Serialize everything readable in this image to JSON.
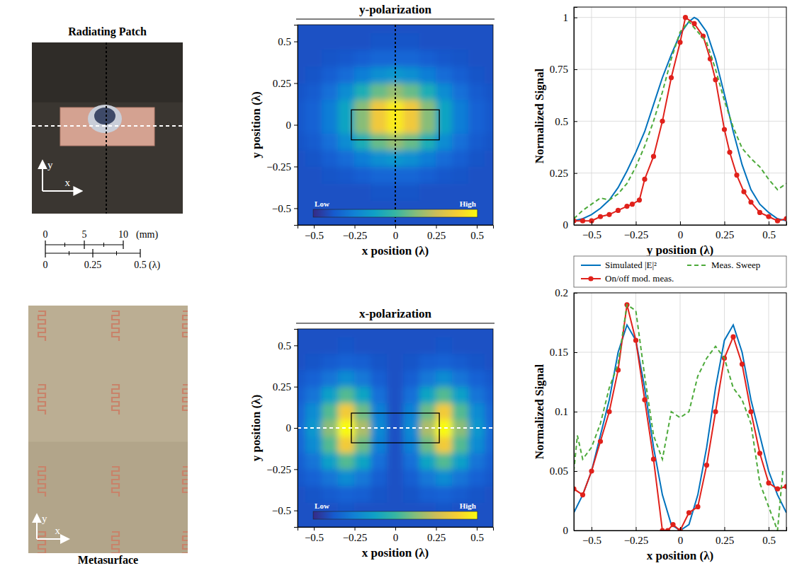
{
  "figure": {
    "patch_photo": {
      "title": "Radiating Patch",
      "axis_labels": {
        "x": "x",
        "y": "y"
      }
    },
    "scale_bar": {
      "mm_ticks": [
        0,
        5,
        10
      ],
      "mm_unit": "(mm)",
      "wavelength_ticks": [
        0,
        0.25,
        0.5
      ],
      "wavelength_unit": "(λ)"
    },
    "metasurface_photo": {
      "title": "Metasurface",
      "axis_labels": {
        "x": "x",
        "y": "y"
      }
    }
  },
  "chart_data": [
    {
      "type": "heatmap",
      "title": "y-polarization",
      "x_label": "x position (λ)",
      "y_label": "y position (λ)",
      "xlim": [
        -0.6,
        0.6
      ],
      "ylim": [
        -0.6,
        0.6
      ],
      "xticks": [
        {
          "value": -0.5,
          "label": "−0.5"
        },
        {
          "value": -0.25,
          "label": "−0.25"
        },
        0,
        0.25,
        0.5
      ],
      "yticks": [
        {
          "value": -0.5,
          "label": "−0.5"
        },
        {
          "value": -0.25,
          "label": "−0.25"
        },
        0,
        0.25,
        0.5
      ],
      "x": [
        -0.6,
        -0.5,
        -0.4,
        -0.3,
        -0.2,
        -0.1,
        0,
        0.1,
        0.2,
        0.3,
        0.4,
        0.5,
        0.6
      ],
      "y": [
        -0.6,
        -0.5,
        -0.4,
        -0.3,
        -0.2,
        -0.1,
        0,
        0.1,
        0.2,
        0.3,
        0.4,
        0.5,
        0.6
      ],
      "cells": [
        [
          0.1,
          0.1,
          0.1,
          0.1,
          0.1,
          0.1,
          0.1,
          0.1,
          0.1,
          0.1,
          0.1,
          0.1,
          0.1
        ],
        [
          0.1,
          0.1,
          0.1,
          0.1,
          0.1,
          0.1,
          0.1,
          0.1,
          0.1,
          0.1,
          0.1,
          0.1,
          0.1
        ],
        [
          0.1,
          0.1,
          0.1,
          0.1,
          0.1,
          0.11,
          0.11,
          0.11,
          0.1,
          0.1,
          0.1,
          0.1,
          0.1
        ],
        [
          0.1,
          0.1,
          0.11,
          0.12,
          0.14,
          0.16,
          0.16,
          0.16,
          0.14,
          0.12,
          0.11,
          0.1,
          0.1
        ],
        [
          0.1,
          0.11,
          0.14,
          0.18,
          0.24,
          0.3,
          0.33,
          0.3,
          0.24,
          0.18,
          0.14,
          0.11,
          0.1
        ],
        [
          0.11,
          0.13,
          0.19,
          0.29,
          0.44,
          0.58,
          0.65,
          0.58,
          0.44,
          0.29,
          0.19,
          0.13,
          0.11
        ],
        [
          0.12,
          0.15,
          0.24,
          0.39,
          0.63,
          0.85,
          0.96,
          0.85,
          0.63,
          0.39,
          0.24,
          0.15,
          0.12
        ],
        [
          0.12,
          0.15,
          0.24,
          0.39,
          0.63,
          0.85,
          0.96,
          0.85,
          0.63,
          0.39,
          0.24,
          0.15,
          0.12
        ],
        [
          0.11,
          0.13,
          0.19,
          0.29,
          0.44,
          0.58,
          0.65,
          0.58,
          0.44,
          0.29,
          0.19,
          0.13,
          0.11
        ],
        [
          0.1,
          0.11,
          0.14,
          0.18,
          0.24,
          0.3,
          0.33,
          0.3,
          0.24,
          0.18,
          0.14,
          0.11,
          0.1
        ],
        [
          0.1,
          0.1,
          0.11,
          0.12,
          0.14,
          0.16,
          0.16,
          0.16,
          0.14,
          0.12,
          0.11,
          0.1,
          0.1
        ],
        [
          0.1,
          0.1,
          0.1,
          0.1,
          0.1,
          0.11,
          0.11,
          0.11,
          0.1,
          0.1,
          0.1,
          0.1,
          0.1
        ],
        [
          0.1,
          0.1,
          0.1,
          0.1,
          0.1,
          0.1,
          0.1,
          0.1,
          0.1,
          0.1,
          0.1,
          0.1,
          0.1
        ]
      ],
      "colorbar_range": [
        0,
        1
      ],
      "colorbar_labels": [
        "Low",
        "High"
      ],
      "patch_outline": {
        "x": [
          -0.27,
          0.27
        ],
        "y": [
          -0.09,
          0.09
        ]
      },
      "cut": {
        "x": 0
      }
    },
    {
      "type": "heatmap",
      "title": "x-polarization",
      "x_label": "x position (λ)",
      "y_label": "y position (λ)",
      "xlim": [
        -0.6,
        0.6
      ],
      "ylim": [
        -0.6,
        0.6
      ],
      "xticks": [
        {
          "value": -0.5,
          "label": "−0.5"
        },
        {
          "value": -0.25,
          "label": "−0.25"
        },
        0,
        0.25,
        0.5
      ],
      "yticks": [
        {
          "value": -0.5,
          "label": "−0.5"
        },
        {
          "value": -0.25,
          "label": "−0.25"
        },
        0,
        0.25,
        0.5
      ],
      "x": [
        -0.6,
        -0.5,
        -0.4,
        -0.3,
        -0.2,
        -0.1,
        0,
        0.1,
        0.2,
        0.3,
        0.4,
        0.5,
        0.6
      ],
      "y": [
        -0.6,
        -0.5,
        -0.4,
        -0.3,
        -0.2,
        -0.1,
        0,
        0.1,
        0.2,
        0.3,
        0.4,
        0.5,
        0.6
      ],
      "cells": [
        [
          0.1,
          0.1,
          0.1,
          0.1,
          0.1,
          0.1,
          0.1,
          0.1,
          0.1,
          0.1,
          0.1,
          0.1,
          0.1
        ],
        [
          0.1,
          0.1,
          0.1,
          0.11,
          0.1,
          0.1,
          0.1,
          0.1,
          0.1,
          0.11,
          0.1,
          0.1,
          0.1
        ],
        [
          0.1,
          0.11,
          0.13,
          0.15,
          0.14,
          0.11,
          0.1,
          0.11,
          0.14,
          0.15,
          0.13,
          0.11,
          0.1
        ],
        [
          0.12,
          0.15,
          0.21,
          0.29,
          0.22,
          0.14,
          0.1,
          0.14,
          0.22,
          0.29,
          0.21,
          0.15,
          0.12
        ],
        [
          0.14,
          0.21,
          0.37,
          0.55,
          0.39,
          0.19,
          0.1,
          0.19,
          0.39,
          0.55,
          0.37,
          0.21,
          0.14
        ],
        [
          0.16,
          0.29,
          0.55,
          0.86,
          0.59,
          0.25,
          0.1,
          0.25,
          0.59,
          0.86,
          0.55,
          0.29,
          0.16
        ],
        [
          0.17,
          0.33,
          0.64,
          1,
          0.69,
          0.28,
          0.1,
          0.28,
          0.69,
          1,
          0.64,
          0.33,
          0.17
        ],
        [
          0.16,
          0.29,
          0.55,
          0.86,
          0.59,
          0.25,
          0.1,
          0.25,
          0.59,
          0.86,
          0.55,
          0.29,
          0.16
        ],
        [
          0.14,
          0.21,
          0.37,
          0.55,
          0.39,
          0.19,
          0.1,
          0.19,
          0.39,
          0.55,
          0.37,
          0.21,
          0.14
        ],
        [
          0.12,
          0.15,
          0.21,
          0.29,
          0.22,
          0.14,
          0.1,
          0.14,
          0.22,
          0.29,
          0.21,
          0.15,
          0.12
        ],
        [
          0.1,
          0.11,
          0.13,
          0.15,
          0.14,
          0.11,
          0.1,
          0.11,
          0.14,
          0.15,
          0.13,
          0.11,
          0.1
        ],
        [
          0.1,
          0.1,
          0.1,
          0.11,
          0.1,
          0.1,
          0.1,
          0.1,
          0.1,
          0.11,
          0.1,
          0.1,
          0.1
        ],
        [
          0.1,
          0.1,
          0.1,
          0.1,
          0.1,
          0.1,
          0.1,
          0.1,
          0.1,
          0.1,
          0.1,
          0.1,
          0.1
        ]
      ],
      "colorbar_range": [
        0,
        1
      ],
      "colorbar_labels": [
        "Low",
        "High"
      ],
      "patch_outline": {
        "x": [
          -0.27,
          0.27
        ],
        "y": [
          -0.09,
          0.09
        ]
      },
      "cut": {
        "y": 0
      }
    },
    {
      "type": "line",
      "x_label": "y position (λ)",
      "y_label": "Normalized Signal",
      "xlim": [
        -0.6,
        0.6
      ],
      "ylim": [
        0,
        1.05
      ],
      "xticks": [
        {
          "value": -0.5,
          "label": "−0.5"
        },
        {
          "value": -0.25,
          "label": "−0.25"
        },
        0,
        0.25,
        0.5
      ],
      "yticks": [
        0,
        0.25,
        0.5,
        0.75,
        1
      ],
      "grid": true,
      "series": [
        {
          "color": "#0072bd",
          "line_style": "solid",
          "marker": "none",
          "x": [
            -0.6,
            -0.55,
            -0.5,
            -0.45,
            -0.4,
            -0.35,
            -0.3,
            -0.25,
            -0.2,
            -0.15,
            -0.1,
            -0.05,
            0,
            0.05,
            0.08,
            0.1,
            0.15,
            0.2,
            0.25,
            0.3,
            0.35,
            0.4,
            0.45,
            0.5,
            0.55,
            0.6
          ],
          "values": [
            0.02,
            0.03,
            0.05,
            0.08,
            0.12,
            0.18,
            0.26,
            0.35,
            0.45,
            0.58,
            0.71,
            0.82,
            0.92,
            0.98,
            1,
            0.99,
            0.93,
            0.8,
            0.63,
            0.45,
            0.29,
            0.17,
            0.1,
            0.06,
            0.03,
            0.02
          ]
        },
        {
          "color": "#e0211b",
          "line_style": "solid",
          "marker": "circle",
          "x": [
            -0.6,
            -0.55,
            -0.5,
            -0.45,
            -0.4,
            -0.35,
            -0.3,
            -0.27,
            -0.23,
            -0.2,
            -0.15,
            -0.1,
            -0.05,
            0,
            0.03,
            0.08,
            0.13,
            0.17,
            0.2,
            0.25,
            0.28,
            0.32,
            0.36,
            0.4,
            0.45,
            0.5,
            0.55,
            0.6
          ],
          "values": [
            0.02,
            0.02,
            0.02,
            0.04,
            0.05,
            0.07,
            0.09,
            0.1,
            0.12,
            0.22,
            0.33,
            0.5,
            0.71,
            0.88,
            1,
            0.97,
            0.91,
            0.8,
            0.7,
            0.46,
            0.35,
            0.24,
            0.16,
            0.11,
            0.06,
            0.04,
            0.02,
            0.03
          ]
        },
        {
          "color": "#4daa3b",
          "line_style": "dashed",
          "marker": "none",
          "x": [
            -0.6,
            -0.55,
            -0.5,
            -0.45,
            -0.4,
            -0.35,
            -0.3,
            -0.25,
            -0.2,
            -0.15,
            -0.1,
            -0.05,
            0,
            0.05,
            0.1,
            0.15,
            0.2,
            0.25,
            0.3,
            0.35,
            0.4,
            0.45,
            0.5,
            0.55,
            0.6
          ],
          "values": [
            0.03,
            0.07,
            0.1,
            0.13,
            0.12,
            0.15,
            0.2,
            0.28,
            0.38,
            0.5,
            0.64,
            0.8,
            0.93,
            0.98,
            0.93,
            0.88,
            0.75,
            0.6,
            0.47,
            0.37,
            0.32,
            0.28,
            0.22,
            0.17,
            0.2
          ]
        }
      ]
    },
    {
      "type": "line",
      "x_label": "x position (λ)",
      "y_label": "Normalized Signal",
      "xlim": [
        -0.6,
        0.6
      ],
      "ylim": [
        0,
        0.2
      ],
      "xticks": [
        {
          "value": -0.5,
          "label": "−0.5"
        },
        {
          "value": -0.25,
          "label": "−0.25"
        },
        0,
        0.25,
        0.5
      ],
      "yticks": [
        0,
        0.05,
        0.1,
        0.15,
        0.2
      ],
      "grid": true,
      "legend": "top",
      "series": [
        {
          "name": "Simulated |E|²",
          "color": "#0072bd",
          "line_style": "solid",
          "marker": "none",
          "x": [
            -0.6,
            -0.55,
            -0.5,
            -0.45,
            -0.4,
            -0.35,
            -0.3,
            -0.25,
            -0.2,
            -0.15,
            -0.1,
            -0.05,
            0,
            0.05,
            0.1,
            0.15,
            0.2,
            0.25,
            0.3,
            0.35,
            0.4,
            0.45,
            0.5,
            0.55,
            0.6
          ],
          "values": [
            0.015,
            0.03,
            0.05,
            0.08,
            0.11,
            0.15,
            0.173,
            0.16,
            0.12,
            0.07,
            0.03,
            0.005,
            0,
            0.005,
            0.03,
            0.07,
            0.12,
            0.16,
            0.173,
            0.15,
            0.11,
            0.08,
            0.05,
            0.03,
            0.015
          ]
        },
        {
          "name": "On/off mod. meas.",
          "color": "#e0211b",
          "line_style": "solid",
          "marker": "circle",
          "x": [
            -0.6,
            -0.55,
            -0.5,
            -0.45,
            -0.4,
            -0.35,
            -0.3,
            -0.25,
            -0.2,
            -0.15,
            -0.1,
            -0.07,
            -0.04,
            0,
            0.05,
            0.1,
            0.15,
            0.2,
            0.25,
            0.3,
            0.35,
            0.4,
            0.45,
            0.5,
            0.55,
            0.6
          ],
          "values": [
            0.035,
            0.03,
            0.05,
            0.075,
            0.1,
            0.135,
            0.19,
            0.16,
            0.11,
            0.06,
            0,
            0,
            0.005,
            0,
            0.015,
            0.02,
            0.055,
            0.1,
            0.145,
            0.163,
            0.14,
            0.1,
            0.065,
            0.04,
            0.035,
            0.037
          ]
        },
        {
          "name": "Meas. Sweep",
          "color": "#4daa3b",
          "line_style": "dashed",
          "marker": "none",
          "x": [
            -0.6,
            -0.58,
            -0.55,
            -0.5,
            -0.45,
            -0.4,
            -0.35,
            -0.3,
            -0.25,
            -0.2,
            -0.15,
            -0.1,
            -0.05,
            0,
            0.05,
            0.1,
            0.15,
            0.2,
            0.25,
            0.3,
            0.35,
            0.4,
            0.45,
            0.5,
            0.55,
            0.58
          ],
          "values": [
            0.05,
            0.08,
            0.06,
            0.07,
            0.09,
            0.12,
            0.14,
            0.19,
            0.185,
            0.13,
            0.08,
            0.06,
            0.1,
            0.095,
            0.1,
            0.13,
            0.145,
            0.155,
            0.145,
            0.12,
            0.11,
            0.09,
            0.04,
            0.02,
            0,
            0.05
          ]
        }
      ]
    }
  ]
}
